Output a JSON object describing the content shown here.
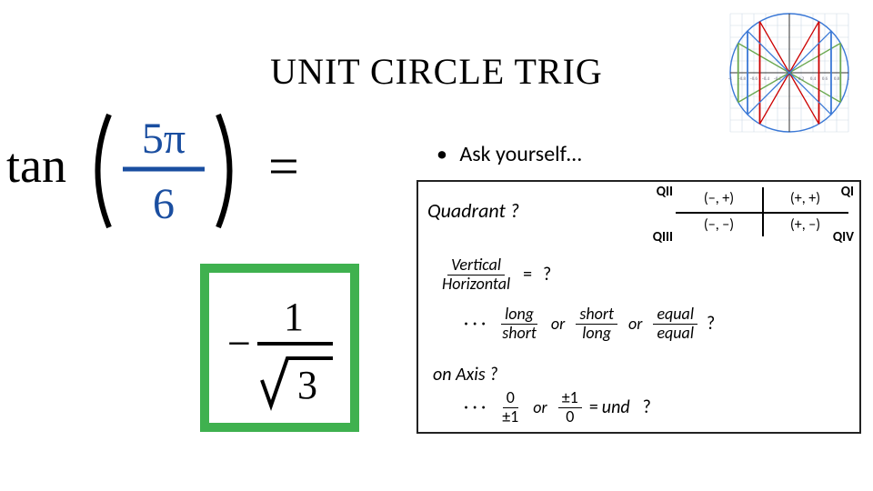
{
  "title": "UNIT CIRCLE TRIG",
  "bullet": {
    "dot": "•",
    "text": "Ask yourself…"
  },
  "expression": {
    "func": "tan",
    "numer": "5π",
    "denom": "6",
    "equals": "=",
    "colors": {
      "func": "#000000",
      "arg": "#1a4ea0"
    }
  },
  "answer": {
    "minus": "−",
    "numer": "1",
    "denom_radical": "3",
    "border_color": "#3fb14f"
  },
  "quadrants": {
    "label_q1": "QI",
    "label_q2": "QII",
    "label_q3": "QIII",
    "label_q4": "QIV",
    "cell_q1": "(+, +)",
    "cell_q2": "(−, +)",
    "cell_q3": "(−, −)",
    "cell_q4": "(+, −)",
    "prompt": "Quadrant ?"
  },
  "ratio_row": {
    "frac_num": "Vertical",
    "frac_den": "Horizontal",
    "eq": "=",
    "q": "?"
  },
  "lso_row": {
    "dots": "· · ·",
    "f1_num": "long",
    "f1_den": "short",
    "f2_num": "short",
    "f2_den": "long",
    "f3_num": "equal",
    "f3_den": "equal",
    "or": "or",
    "q": "?"
  },
  "axis_row": {
    "label": "on  Axis ?"
  },
  "axisopt_row": {
    "dots": "· · ·",
    "f1_num": "0",
    "f1_den": "±1",
    "f2_num": "±1",
    "f2_den": "0",
    "eq": "=",
    "und": "und",
    "or": "or",
    "q": "?"
  },
  "unit_circle_diagram": {
    "radius": 65,
    "circle_stroke": "#3a78d6",
    "grid_stroke": "#cfd9e6",
    "axis_stroke": "#333333",
    "lines": [
      {
        "angle_deg": 30,
        "color": "#6aa84f"
      },
      {
        "angle_deg": 150,
        "color": "#6aa84f"
      },
      {
        "angle_deg": 60,
        "color": "#cc0000"
      },
      {
        "angle_deg": 120,
        "color": "#cc0000"
      },
      {
        "angle_deg": 45,
        "color": "#3a78d6"
      },
      {
        "angle_deg": 135,
        "color": "#3a78d6"
      }
    ],
    "tick_values": [
      -1,
      -0.8,
      -0.6,
      -0.4,
      -0.2,
      0.2,
      0.4,
      0.6,
      0.8,
      1
    ]
  }
}
